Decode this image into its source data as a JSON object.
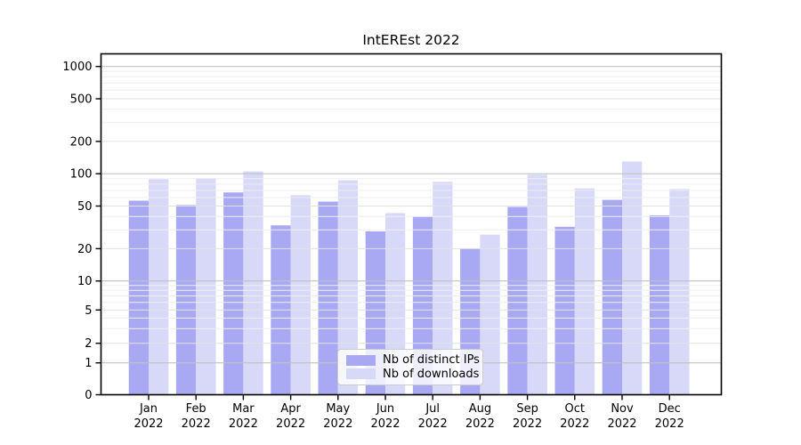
{
  "title": "IntEREst 2022",
  "chart_data": {
    "type": "bar",
    "title": "IntEREst 2022",
    "y_scale": "symlog",
    "y_ticks": [
      0,
      1,
      2,
      5,
      10,
      20,
      50,
      100,
      200,
      500,
      1000
    ],
    "ylim": [
      0,
      1400
    ],
    "grid": "on",
    "legend_position": "lower center",
    "categories": [
      "Jan",
      "Feb",
      "Mar",
      "Apr",
      "May",
      "Jun",
      "Jul",
      "Aug",
      "Sep",
      "Oct",
      "Nov",
      "Dec"
    ],
    "x_year_label": "2022",
    "series": [
      {
        "name": "Nb of distinct IPs",
        "color": "#a9a9f3",
        "values": [
          56,
          51,
          67,
          33,
          55,
          29,
          40,
          20,
          49,
          32,
          57,
          41
        ]
      },
      {
        "name": "Nb of downloads",
        "color": "#d8d8f9",
        "values": [
          89,
          91,
          105,
          63,
          87,
          43,
          84,
          27,
          98,
          73,
          130,
          72
        ]
      }
    ],
    "colors": {
      "grid_major_decade": "#c2c2c2",
      "grid_major_other": "#e2e2e2",
      "grid_minor": "#efefef",
      "axis_frame": "#000000",
      "tick_label": "#000000"
    }
  }
}
